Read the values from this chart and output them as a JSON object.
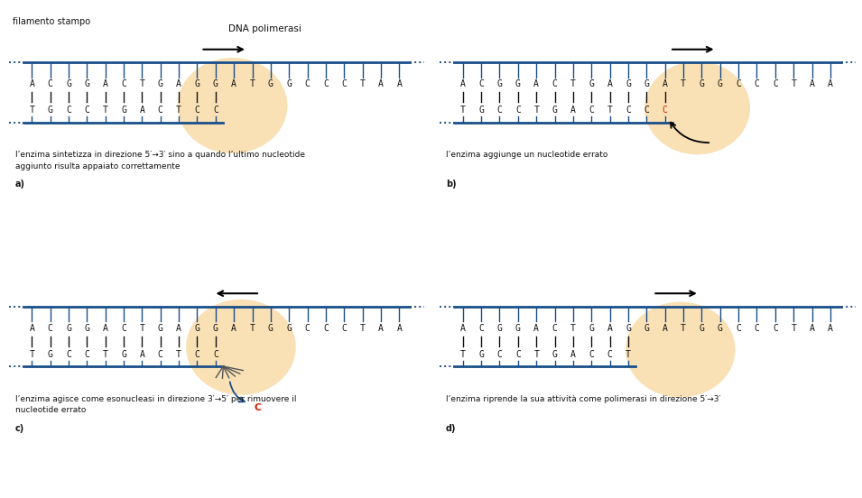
{
  "bg_color": "#ffffff",
  "strand_color": "#1a4f8a",
  "text_color": "#111111",
  "error_nt_color": "#cc2200",
  "bubble_color": "#f5c878",
  "bubble_alpha": 0.55,
  "template_seq": "ACGGACTGAGGATGGCCCTAA",
  "new_strand_a": "TGCCTGACTCC",
  "new_strand_b": "TGCCTGACTCC",
  "new_strand_b_err": "C",
  "new_strand_c": "TGCCTGACTCC",
  "new_strand_d": "TGCCTGACCT",
  "caption_a": "l’enzima sintetizza in direzione 5′→3′ sino a quando l’ultimo nucleotide\naggiunto risulta appaiato correttamente",
  "label_a": "a)",
  "caption_b": "l’enzima aggiunge un nucleotide errato",
  "label_b": "b)",
  "caption_c": "l’enzima agisce come esonucleasi in direzione 3′→5′ per rimuovere il\nnucleotide errato",
  "label_c": "c)",
  "caption_d": "l’enzima riprende la sua attività come polimerasi in direzione 5′→3′",
  "label_d": "d)",
  "filamento_label": "filamento stampo",
  "dna_pol_label": "DNA polimerasi"
}
